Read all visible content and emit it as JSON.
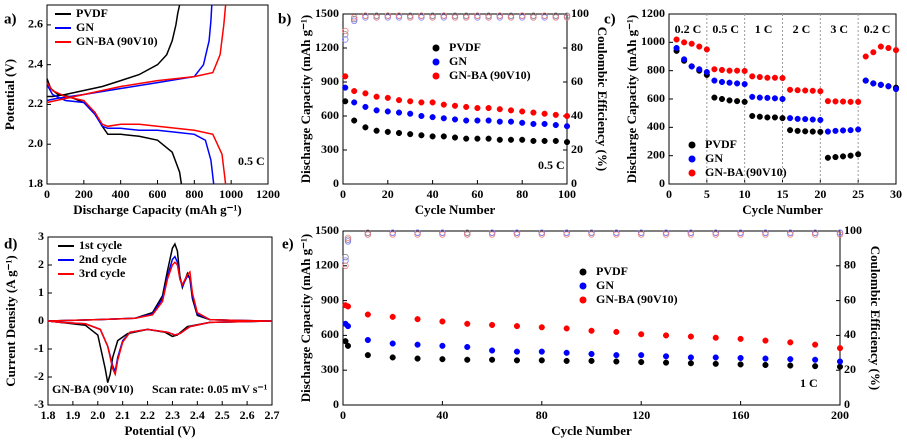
{
  "chart_data": [
    {
      "type": "line",
      "label": "a)",
      "xlabel": "Discharge Capacity (mAh g⁻¹)",
      "ylabel": "Potential (V)",
      "xlim": [
        0,
        1200
      ],
      "xticks": [
        0,
        200,
        400,
        600,
        800,
        1000,
        1200
      ],
      "ylim": [
        1.8,
        2.7
      ],
      "yticks": [
        1.8,
        {
          "value": 2,
          "label": "2.0"
        },
        2.2,
        2.4,
        2.6
      ],
      "annotations": [
        "0.5 C"
      ],
      "series": [
        {
          "name": "PVDF",
          "color": "#000000",
          "x": [
            0,
            20,
            60,
            120,
            200,
            260,
            300,
            330,
            400,
            500,
            600,
            680,
            720,
            730,
            null,
            0,
            30,
            100,
            200,
            300,
            400,
            500,
            600,
            650,
            680,
            700,
            710,
            720
          ],
          "values": [
            2.33,
            2.28,
            2.25,
            2.24,
            2.21,
            2.16,
            2.09,
            2.05,
            2.05,
            2.04,
            2.02,
            1.96,
            1.86,
            1.8,
            null,
            2.24,
            2.24,
            2.25,
            2.27,
            2.29,
            2.32,
            2.35,
            2.4,
            2.45,
            2.52,
            2.6,
            2.66,
            2.7
          ]
        },
        {
          "name": "GN",
          "color": "#0000ff",
          "x": [
            0,
            30,
            100,
            200,
            260,
            300,
            330,
            400,
            500,
            600,
            700,
            800,
            860,
            890,
            905,
            null,
            0,
            50,
            200,
            400,
            600,
            800,
            850,
            880,
            890,
            895
          ],
          "values": [
            2.3,
            2.25,
            2.22,
            2.21,
            2.15,
            2.09,
            2.08,
            2.08,
            2.07,
            2.07,
            2.06,
            2.05,
            2.02,
            1.92,
            1.8,
            null,
            2.22,
            2.23,
            2.25,
            2.28,
            2.31,
            2.34,
            2.4,
            2.52,
            2.62,
            2.7
          ]
        },
        {
          "name": "GN-BA (90V10)",
          "color": "#ff0000",
          "x": [
            0,
            30,
            100,
            200,
            260,
            300,
            330,
            400,
            500,
            600,
            700,
            800,
            900,
            950,
            970,
            null,
            0,
            50,
            200,
            400,
            600,
            800,
            900,
            940,
            960,
            970
          ],
          "values": [
            2.31,
            2.27,
            2.24,
            2.22,
            2.16,
            2.1,
            2.09,
            2.1,
            2.1,
            2.09,
            2.08,
            2.07,
            2.05,
            1.95,
            1.8,
            null,
            2.21,
            2.22,
            2.25,
            2.29,
            2.32,
            2.34,
            2.36,
            2.45,
            2.6,
            2.7
          ]
        }
      ]
    },
    {
      "type": "scatter",
      "label": "b)",
      "xlabel": "Cycle Number",
      "ylabel": "Discharge Capacity (mAh g⁻¹)",
      "y2label": "Coulombic Efficiency (%)",
      "xlim": [
        0,
        100
      ],
      "xticks": [
        0,
        20,
        40,
        60,
        80,
        100
      ],
      "ylim": [
        0,
        1500
      ],
      "yticks": [
        0,
        300,
        600,
        900,
        1200,
        1500
      ],
      "y2lim": [
        0,
        100
      ],
      "y2ticks": [
        0,
        20,
        40,
        60,
        80,
        100
      ],
      "annotations": [
        "0.5 C"
      ],
      "x": [
        1,
        5,
        10,
        15,
        20,
        25,
        30,
        35,
        40,
        45,
        50,
        55,
        60,
        65,
        70,
        75,
        80,
        85,
        90,
        95,
        100
      ],
      "series": [
        {
          "name": "PVDF",
          "color": "#000000",
          "values": [
            730,
            560,
            500,
            470,
            460,
            450,
            440,
            430,
            420,
            420,
            410,
            400,
            400,
            400,
            390,
            390,
            390,
            380,
            380,
            380,
            370
          ]
        },
        {
          "name": "GN",
          "color": "#0000ff",
          "values": [
            850,
            720,
            680,
            650,
            640,
            630,
            620,
            600,
            590,
            580,
            570,
            560,
            560,
            560,
            550,
            550,
            540,
            530,
            530,
            520,
            510
          ]
        },
        {
          "name": "GN-BA (90V10)",
          "color": "#ff0000",
          "values": [
            950,
            820,
            800,
            770,
            760,
            740,
            730,
            720,
            720,
            700,
            690,
            680,
            670,
            670,
            660,
            650,
            640,
            630,
            620,
            610,
            600
          ]
        },
        {
          "color": "#808080",
          "marker": "open",
          "axis": "y2",
          "values": [
            88,
            97,
            99,
            99,
            99,
            99,
            99,
            99,
            99,
            99,
            99,
            99,
            99,
            99,
            99,
            99,
            99,
            99,
            99,
            99,
            99
          ]
        },
        {
          "color": "#8080ff",
          "marker": "open",
          "axis": "y2",
          "values": [
            85,
            96,
            98,
            98,
            98,
            98,
            98,
            98,
            98,
            98,
            98,
            98,
            98,
            98,
            98,
            98,
            98,
            98,
            98,
            98,
            98
          ]
        },
        {
          "color": "#f08080",
          "marker": "open",
          "axis": "y2",
          "values": [
            90,
            98,
            99,
            98,
            99,
            99,
            98,
            99,
            98,
            99,
            98,
            98,
            99,
            98,
            99,
            98,
            99,
            98,
            99,
            98,
            98
          ]
        }
      ]
    },
    {
      "type": "scatter",
      "label": "c)",
      "xlabel": "Cycle Number",
      "ylabel": "Discharge Capacity (mAh g⁻¹)",
      "xlim": [
        0,
        30
      ],
      "xticks": [
        0,
        5,
        10,
        15,
        20,
        25,
        30
      ],
      "ylim": [
        0,
        1200
      ],
      "yticks": [
        0,
        200,
        400,
        600,
        800,
        1000,
        1200
      ],
      "segment_labels": [
        "0.2 C",
        "0.5 C",
        "1 C",
        "2 C",
        "3 C",
        "0.2 C"
      ],
      "x": [
        1,
        2,
        3,
        4,
        5,
        6,
        7,
        8,
        9,
        10,
        11,
        12,
        13,
        14,
        15,
        16,
        17,
        18,
        19,
        20,
        21,
        22,
        23,
        24,
        25,
        26,
        27,
        28,
        29,
        30
      ],
      "series": [
        {
          "name": "PVDF",
          "color": "#000000",
          "values": [
            940,
            870,
            830,
            800,
            770,
            610,
            600,
            590,
            585,
            580,
            480,
            475,
            470,
            470,
            465,
            380,
            375,
            372,
            370,
            368,
            185,
            190,
            195,
            200,
            210,
            730,
            710,
            700,
            690,
            680
          ]
        },
        {
          "name": "GN",
          "color": "#0000ff",
          "values": [
            960,
            880,
            830,
            810,
            790,
            730,
            720,
            715,
            710,
            705,
            615,
            610,
            608,
            605,
            600,
            465,
            460,
            458,
            455,
            452,
            370,
            375,
            378,
            380,
            385,
            730,
            710,
            700,
            690,
            670
          ]
        },
        {
          "name": "GN-BA (90V10)",
          "color": "#ff0000",
          "values": [
            1020,
            1000,
            990,
            970,
            950,
            810,
            805,
            800,
            800,
            798,
            760,
            755,
            750,
            750,
            748,
            665,
            662,
            660,
            658,
            655,
            585,
            583,
            582,
            580,
            580,
            900,
            930,
            970,
            960,
            945
          ]
        }
      ]
    },
    {
      "type": "line",
      "label": "d)",
      "xlabel": "Potential (V)",
      "ylabel": "Current Density (A g⁻¹)",
      "xlim": [
        1.8,
        2.7
      ],
      "xticks": [
        1.8,
        1.9,
        {
          "value": 2,
          "label": "2.0"
        },
        2.1,
        2.2,
        2.3,
        2.4,
        2.5,
        2.6,
        2.7
      ],
      "ylim": [
        -3,
        3
      ],
      "yticks": [
        -3,
        -2,
        -1,
        0,
        1,
        2,
        3
      ],
      "annotations": [
        "GN-BA (90V10)",
        "Scan rate: 0.05 mV s⁻¹"
      ],
      "series": [
        {
          "name": "1st cycle",
          "color": "#000000",
          "x": [
            2.7,
            2.45,
            2.36,
            2.32,
            2.3,
            2.27,
            2.2,
            2.12,
            2.08,
            2.06,
            2.05,
            2.04,
            2.03,
            2.0,
            1.95,
            1.85,
            1.8,
            2.0,
            2.15,
            2.22,
            2.26,
            2.28,
            2.3,
            2.31,
            2.32,
            2.33,
            2.34,
            2.36,
            2.37,
            2.38,
            2.4,
            2.45,
            2.55,
            2.7
          ],
          "values": [
            0,
            -0.05,
            -0.2,
            -0.5,
            -0.55,
            -0.4,
            -0.3,
            -0.45,
            -0.7,
            -1.3,
            -1.9,
            -2.2,
            -1.7,
            -0.5,
            -0.15,
            -0.05,
            0,
            0.05,
            0.1,
            0.3,
            0.9,
            1.8,
            2.6,
            2.75,
            2.5,
            1.6,
            1.2,
            1.7,
            1.5,
            0.8,
            0.2,
            0.05,
            0.02,
            0
          ]
        },
        {
          "name": "2nd cycle",
          "color": "#0000ff",
          "x": [
            2.7,
            2.45,
            2.37,
            2.33,
            2.31,
            2.28,
            2.2,
            2.13,
            2.1,
            2.08,
            2.07,
            2.06,
            2.04,
            2.01,
            1.95,
            1.85,
            1.8,
            2.0,
            2.15,
            2.22,
            2.26,
            2.28,
            2.3,
            2.31,
            2.32,
            2.33,
            2.34,
            2.36,
            2.37,
            2.38,
            2.4,
            2.45,
            2.55,
            2.7
          ],
          "values": [
            0,
            -0.05,
            -0.2,
            -0.45,
            -0.5,
            -0.4,
            -0.3,
            -0.4,
            -0.7,
            -1.3,
            -1.8,
            -1.6,
            -0.9,
            -0.3,
            -0.1,
            -0.05,
            0,
            0.05,
            0.1,
            0.25,
            0.8,
            1.6,
            2.2,
            2.3,
            2.1,
            1.5,
            1.25,
            1.6,
            1.55,
            0.9,
            0.25,
            0.05,
            0.02,
            0
          ]
        },
        {
          "name": "3rd cycle",
          "color": "#ff0000",
          "x": [
            2.7,
            2.45,
            2.37,
            2.33,
            2.31,
            2.28,
            2.2,
            2.13,
            2.1,
            2.08,
            2.07,
            2.06,
            2.04,
            2.01,
            1.95,
            1.85,
            1.8,
            2.0,
            2.15,
            2.22,
            2.26,
            2.28,
            2.3,
            2.31,
            2.32,
            2.33,
            2.34,
            2.36,
            2.37,
            2.38,
            2.4,
            2.45,
            2.55,
            2.7
          ],
          "values": [
            0,
            -0.05,
            -0.2,
            -0.45,
            -0.5,
            -0.4,
            -0.3,
            -0.4,
            -0.75,
            -1.4,
            -1.9,
            -1.7,
            -0.9,
            -0.3,
            -0.1,
            -0.05,
            0,
            0.05,
            0.1,
            0.22,
            0.7,
            1.5,
            2.0,
            2.1,
            2.0,
            1.5,
            1.3,
            1.65,
            1.75,
            1.0,
            0.3,
            0.05,
            0.02,
            0
          ]
        }
      ]
    },
    {
      "type": "scatter",
      "label": "e)",
      "xlabel": "Cycle Number",
      "ylabel": "Discharge Capacity (mAh g⁻¹)",
      "y2label": "Coulombic Efficiency (%)",
      "xlim": [
        0,
        200
      ],
      "xticks": [
        0,
        40,
        80,
        120,
        160,
        200
      ],
      "ylim": [
        0,
        1500
      ],
      "yticks": [
        0,
        300,
        600,
        900,
        1200,
        1500
      ],
      "y2lim": [
        0,
        100
      ],
      "y2ticks": [
        0,
        20,
        40,
        60,
        80,
        100
      ],
      "annotations": [
        "1 C"
      ],
      "x": [
        1,
        2,
        10,
        20,
        30,
        40,
        50,
        60,
        70,
        80,
        90,
        100,
        110,
        120,
        130,
        140,
        150,
        160,
        170,
        180,
        190,
        200
      ],
      "series": [
        {
          "name": "PVDF",
          "color": "#000000",
          "values": [
            550,
            510,
            430,
            410,
            400,
            395,
            390,
            390,
            385,
            385,
            380,
            380,
            375,
            370,
            365,
            360,
            355,
            350,
            345,
            340,
            335,
            330
          ]
        },
        {
          "name": "GN",
          "color": "#0000ff",
          "values": [
            700,
            680,
            560,
            530,
            520,
            510,
            500,
            470,
            460,
            460,
            450,
            440,
            430,
            430,
            420,
            410,
            410,
            405,
            400,
            395,
            390,
            375
          ]
        },
        {
          "name": "GN-BA (90V10)",
          "color": "#ff0000",
          "values": [
            860,
            850,
            780,
            760,
            740,
            720,
            700,
            690,
            680,
            670,
            660,
            640,
            630,
            610,
            600,
            590,
            580,
            570,
            555,
            540,
            520,
            490
          ]
        },
        {
          "color": "#808080",
          "marker": "open",
          "axis": "y2",
          "values": [
            85,
            95,
            99,
            99,
            99,
            99,
            99,
            99,
            99,
            99,
            99,
            99,
            99,
            99,
            99,
            99,
            99,
            99,
            99,
            99,
            99,
            99
          ]
        },
        {
          "color": "#8080ff",
          "marker": "open",
          "axis": "y2",
          "values": [
            83,
            94,
            98,
            99,
            99,
            99,
            98,
            99,
            99,
            99,
            99,
            99,
            99,
            99,
            99,
            99,
            99,
            99,
            99,
            99,
            99,
            99
          ]
        },
        {
          "color": "#f08080",
          "marker": "open",
          "axis": "y2",
          "values": [
            80,
            96,
            98,
            98,
            98,
            98,
            98,
            98,
            98,
            98,
            98,
            98,
            98,
            98,
            98,
            98,
            98,
            98,
            98,
            98,
            98,
            98
          ]
        }
      ]
    }
  ]
}
